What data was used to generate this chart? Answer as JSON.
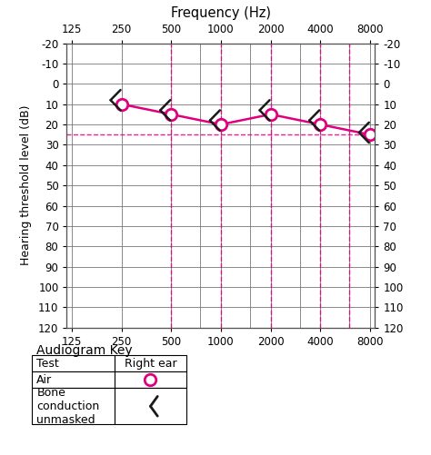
{
  "title": "Frequency (Hz)",
  "ylabel": "Hearing threshold level (dB)",
  "freqs_major": [
    125,
    250,
    500,
    1000,
    2000,
    4000,
    8000
  ],
  "freqs_minor": [
    125,
    250,
    500,
    750,
    1000,
    1500,
    2000,
    3000,
    4000,
    6000,
    8000
  ],
  "yticks": [
    -20,
    -10,
    0,
    10,
    20,
    30,
    40,
    50,
    60,
    70,
    80,
    90,
    100,
    110,
    120
  ],
  "ylim": [
    -20,
    120
  ],
  "air_freqs": [
    250,
    500,
    1000,
    2000,
    4000,
    8000
  ],
  "air_values": [
    10,
    15,
    20,
    15,
    20,
    25
  ],
  "bone_freqs": [
    250,
    500,
    1000,
    2000,
    4000,
    8000
  ],
  "bone_values": [
    8,
    13,
    18,
    13,
    18,
    24
  ],
  "dashed_vline_freqs": [
    500,
    1000,
    2000,
    4000,
    6000
  ],
  "hline_value": 25,
  "color_main": "#e0007f",
  "color_bone": "#1a1a1a",
  "background_color": "#ffffff",
  "grid_color": "#777777",
  "key_title": "Audiogram Key",
  "key_test": "Test",
  "key_right_ear": "Right ear",
  "key_air": "Air",
  "key_bone": "Bone\nconduction\nunmasked"
}
